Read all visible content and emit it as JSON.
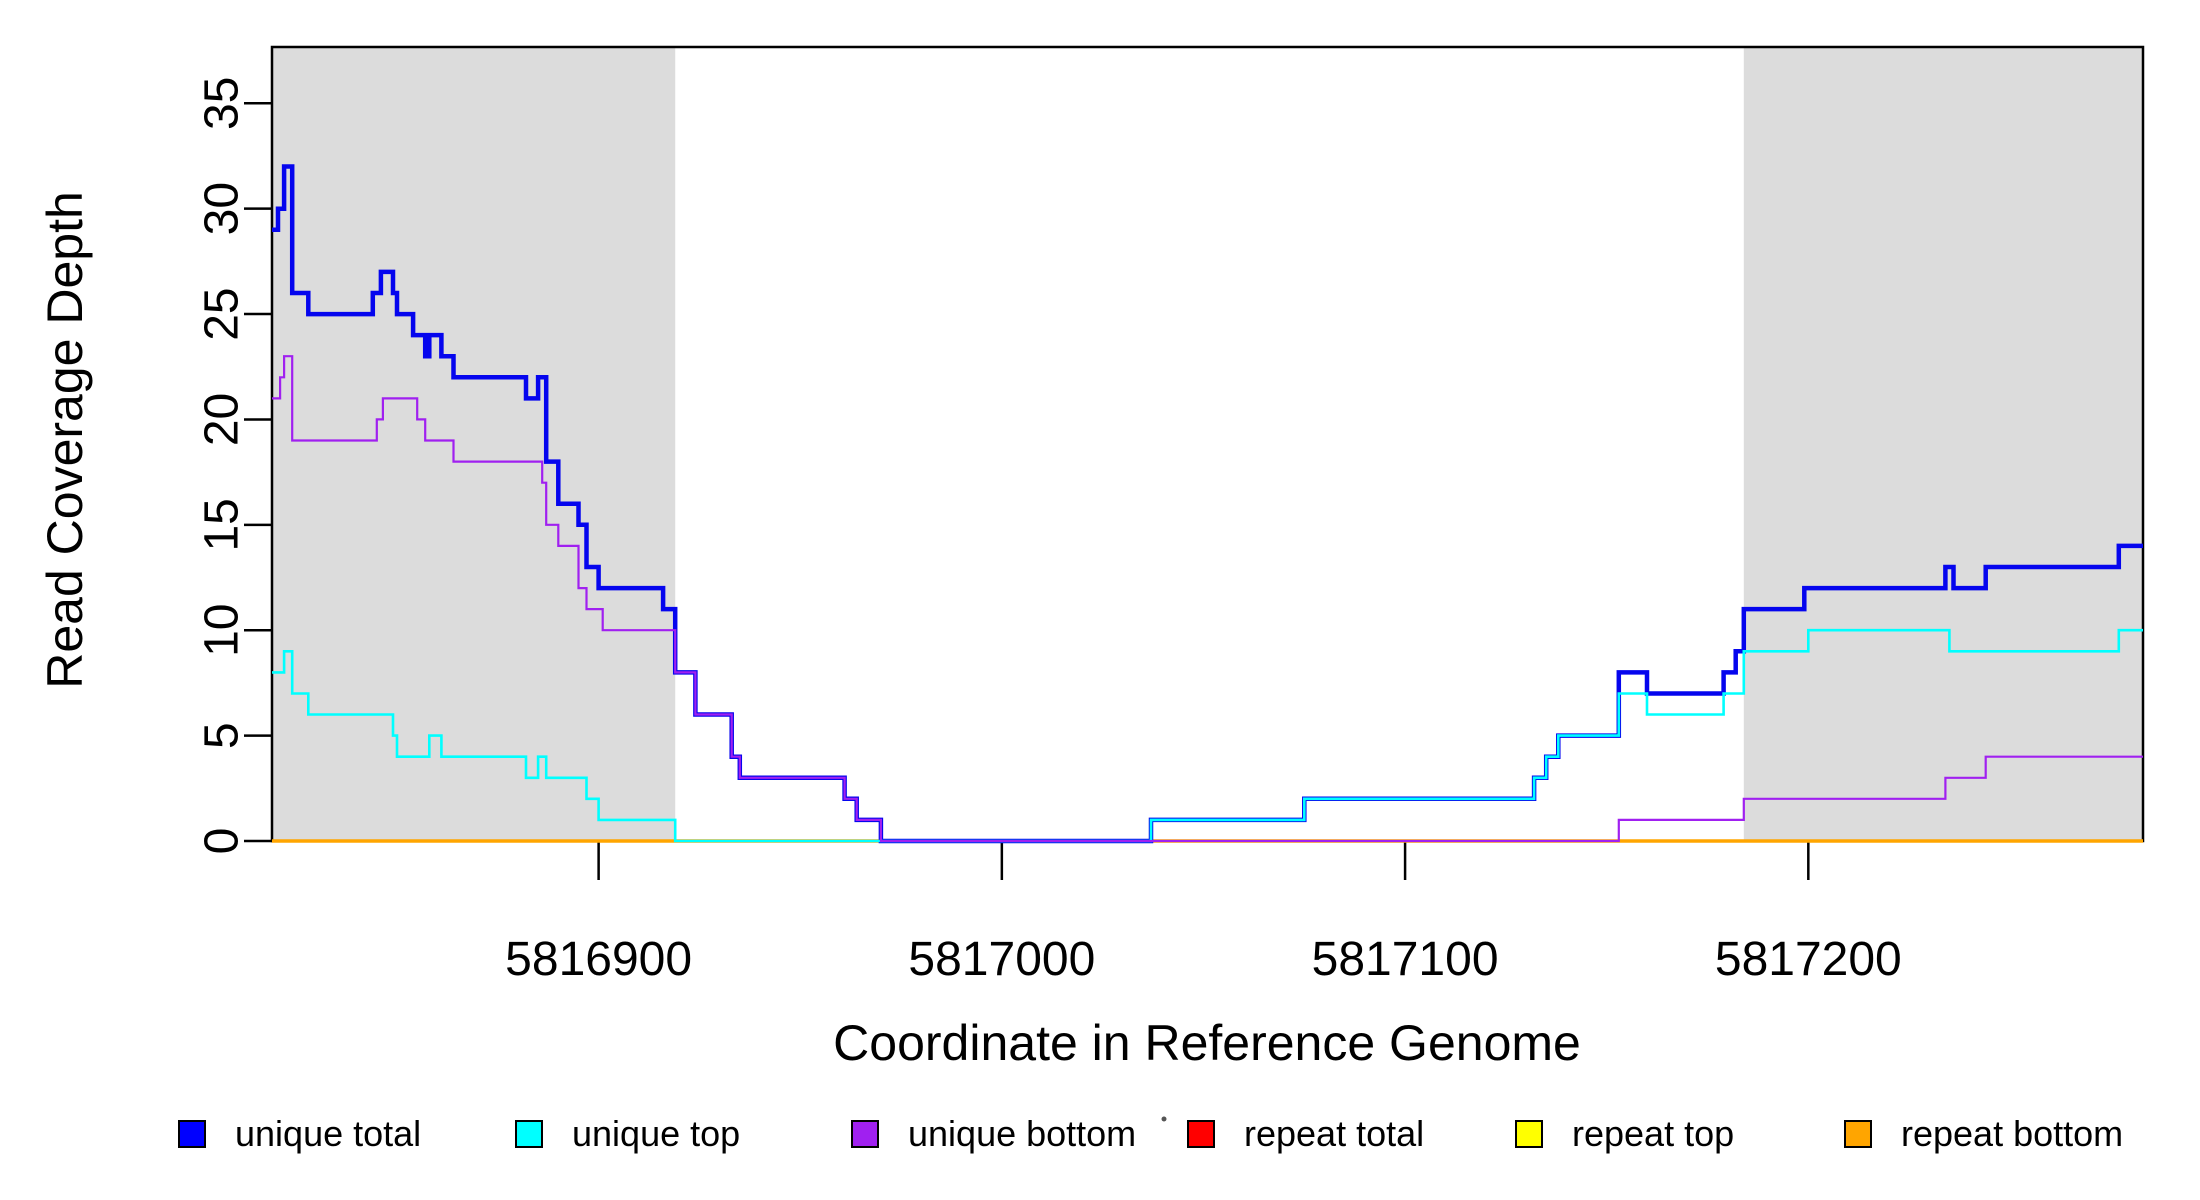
{
  "chart_data": {
    "type": "line",
    "subtype": "step",
    "title": "",
    "xlabel": "Coordinate in Reference Genome",
    "ylabel": "Read Coverage Depth",
    "x_domain": [
      5816819,
      5817283
    ],
    "y_domain": [
      0,
      37.67
    ],
    "x_ticks": [
      5816900,
      5817000,
      5817100,
      5817200
    ],
    "y_ticks": [
      0,
      5,
      10,
      15,
      20,
      25,
      30,
      35
    ],
    "grid": false,
    "legend_position": "bottom",
    "shaded_regions": {
      "color": "#DCDCDC",
      "ranges": [
        [
          5816819,
          5816919
        ],
        [
          5817184,
          5817283
        ]
      ]
    },
    "draw_order": [
      "repeat total",
      "repeat top",
      "repeat bottom",
      "unique total",
      "unique top",
      "unique bottom"
    ],
    "series": [
      {
        "name": "unique total",
        "color": "#0505EE",
        "line_width": 4.5,
        "points": [
          [
            5816819,
            29
          ],
          [
            5816820.5,
            30
          ],
          [
            5816822,
            32
          ],
          [
            5816824,
            26
          ],
          [
            5816828,
            25
          ],
          [
            5816844,
            26
          ],
          [
            5816846,
            27
          ],
          [
            5816849,
            26
          ],
          [
            5816850,
            25
          ],
          [
            5816854,
            24
          ],
          [
            5816857,
            23
          ],
          [
            5816858,
            24
          ],
          [
            5816861,
            23
          ],
          [
            5816864,
            22
          ],
          [
            5816882,
            21
          ],
          [
            5816885,
            22
          ],
          [
            5816887,
            18
          ],
          [
            5816890,
            16
          ],
          [
            5816895,
            15
          ],
          [
            5816897,
            13
          ],
          [
            5816900,
            12
          ],
          [
            5816916,
            11
          ],
          [
            5816919,
            8
          ],
          [
            5816924,
            6
          ],
          [
            5816933,
            4
          ],
          [
            5816935,
            3
          ],
          [
            5816961,
            2
          ],
          [
            5816964,
            1
          ],
          [
            5816970,
            0
          ],
          [
            5817037,
            1
          ],
          [
            5817075,
            2
          ],
          [
            5817132,
            3
          ],
          [
            5817135,
            4
          ],
          [
            5817138,
            5
          ],
          [
            5817153,
            8
          ],
          [
            5817160,
            7
          ],
          [
            5817179,
            8
          ],
          [
            5817182,
            9
          ],
          [
            5817184,
            11
          ],
          [
            5817199,
            12
          ],
          [
            5817234,
            13
          ],
          [
            5817236,
            12
          ],
          [
            5817244,
            13
          ],
          [
            5817277,
            14
          ]
        ]
      },
      {
        "name": "unique top",
        "color": "#00FFFF",
        "line_width": 2.6,
        "points": [
          [
            5816819,
            8
          ],
          [
            5816822,
            9
          ],
          [
            5816824,
            7
          ],
          [
            5816828,
            6
          ],
          [
            5816849,
            5
          ],
          [
            5816850,
            4
          ],
          [
            5816858,
            5
          ],
          [
            5816861,
            4
          ],
          [
            5816882,
            3
          ],
          [
            5816885,
            4
          ],
          [
            5816887,
            3
          ],
          [
            5816897,
            2
          ],
          [
            5816900,
            1
          ],
          [
            5816919,
            0
          ],
          [
            5817037,
            1
          ],
          [
            5817075,
            2
          ],
          [
            5817132,
            3
          ],
          [
            5817135,
            4
          ],
          [
            5817138,
            5
          ],
          [
            5817153,
            7
          ],
          [
            5817160,
            6
          ],
          [
            5817179,
            7
          ],
          [
            5817184,
            9
          ],
          [
            5817200,
            10
          ],
          [
            5817235,
            9
          ],
          [
            5817277,
            10
          ]
        ]
      },
      {
        "name": "unique bottom",
        "color": "#A020F0",
        "line_width": 2.2,
        "points": [
          [
            5816819,
            21
          ],
          [
            5816821,
            22
          ],
          [
            5816822,
            23
          ],
          [
            5816824,
            19
          ],
          [
            5816845,
            20
          ],
          [
            5816846.5,
            21
          ],
          [
            5816855,
            20
          ],
          [
            5816857,
            19
          ],
          [
            5816864,
            18
          ],
          [
            5816886,
            17
          ],
          [
            5816887,
            15
          ],
          [
            5816890,
            14
          ],
          [
            5816895,
            12
          ],
          [
            5816897,
            11
          ],
          [
            5816901,
            10
          ],
          [
            5816919,
            8
          ],
          [
            5816924,
            6
          ],
          [
            5816933,
            4
          ],
          [
            5816935,
            3
          ],
          [
            5816961,
            2
          ],
          [
            5816964,
            1
          ],
          [
            5816970,
            0
          ],
          [
            5817153,
            1
          ],
          [
            5817184,
            2
          ],
          [
            5817234,
            3
          ],
          [
            5817244,
            4
          ]
        ]
      },
      {
        "name": "repeat total",
        "color": "#FF0000",
        "line_width": 2.8,
        "points": [
          [
            5816819,
            0
          ]
        ]
      },
      {
        "name": "repeat top",
        "color": "#FFFF00",
        "line_width": 2.0,
        "points": [
          [
            5816819,
            0
          ]
        ]
      },
      {
        "name": "repeat bottom",
        "color": "#FFA500",
        "line_width": 3.4,
        "points": [
          [
            5816819,
            0
          ]
        ]
      }
    ]
  },
  "legend": {
    "items": [
      {
        "label": "unique total",
        "color": "#0000FF"
      },
      {
        "label": "unique top",
        "color": "#00FFFF"
      },
      {
        "label": "unique bottom",
        "color": "#A020F0"
      },
      {
        "label": "repeat total",
        "color": "#FF0000"
      },
      {
        "label": "repeat top",
        "color": "#FFFF00"
      },
      {
        "label": "repeat bottom",
        "color": "#FFA500"
      }
    ]
  }
}
